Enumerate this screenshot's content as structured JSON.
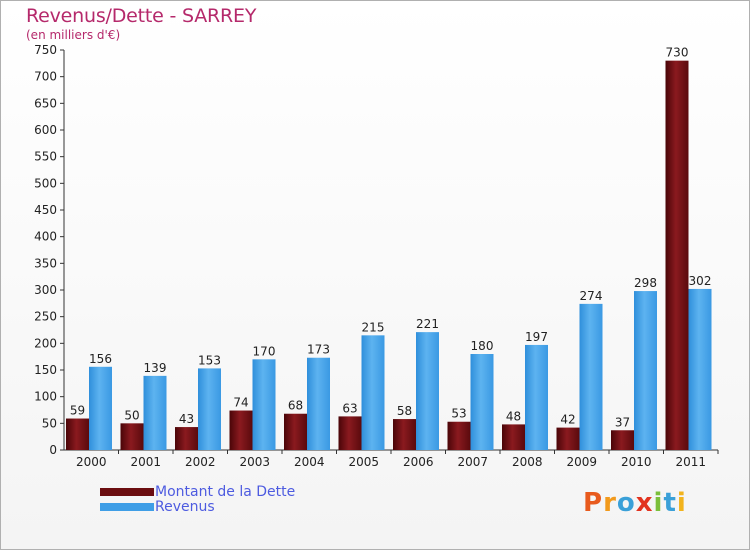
{
  "header": {
    "title": "Revenus/Dette - SARREY",
    "subtitle": "(en milliers d'€)"
  },
  "legend": {
    "items": [
      {
        "label": "Montant de la Dette",
        "color": "#6b0d10"
      },
      {
        "label": "Revenus",
        "color": "#3f9ee6"
      }
    ]
  },
  "logo": {
    "text": "Proxiti",
    "letters": [
      "P",
      "r",
      "o",
      "x",
      "i",
      "t",
      "i"
    ],
    "colors": [
      "#e85a1d",
      "#f29a1c",
      "#3aa0d8",
      "#e2331f",
      "#7bbf3b",
      "#3aa0d8",
      "#f2b31c"
    ]
  },
  "chart_data": {
    "type": "bar",
    "title": "Revenus/Dette - SARREY",
    "ylabel": "(en milliers d'€)",
    "xlabel": "",
    "ylim": [
      0,
      750
    ],
    "yticks": [
      0,
      50,
      100,
      150,
      200,
      250,
      300,
      350,
      400,
      450,
      500,
      550,
      600,
      650,
      700,
      750
    ],
    "categories": [
      "2000",
      "2001",
      "2002",
      "2003",
      "2004",
      "2005",
      "2006",
      "2007",
      "2008",
      "2009",
      "2010",
      "2011"
    ],
    "series": [
      {
        "name": "Montant de la Dette",
        "color": "#6b0d10",
        "values": [
          59,
          50,
          43,
          74,
          68,
          63,
          58,
          53,
          48,
          42,
          37,
          730
        ]
      },
      {
        "name": "Revenus",
        "color": "#3f9ee6",
        "values": [
          156,
          139,
          153,
          170,
          173,
          215,
          221,
          180,
          197,
          274,
          298,
          302
        ]
      }
    ],
    "grid": false,
    "legend_position": "bottom-left"
  }
}
